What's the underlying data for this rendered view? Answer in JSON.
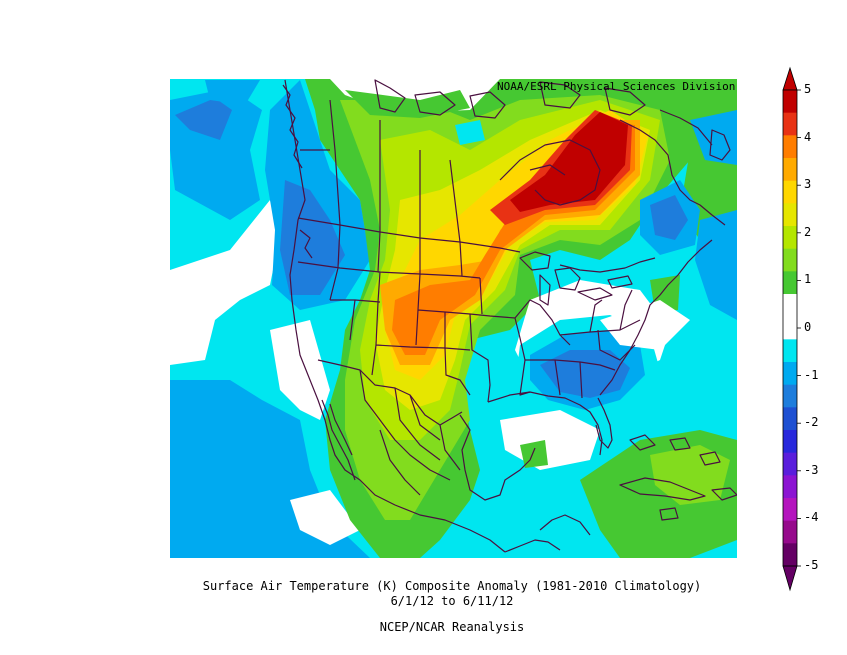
{
  "credit": "NOAA/ESRL Physical Sciences Division",
  "title": "Surface Air Temperature (K) Composite Anomaly (1981-2010 Climatology)",
  "date_range": "6/1/12  to 6/11/12",
  "dataset": "NCEP/NCAR Reanalysis",
  "colorbar": {
    "tick_labels": [
      "5",
      "4",
      "3",
      "2",
      "1",
      "0",
      "-1",
      "-2",
      "-3",
      "-4",
      "-5"
    ],
    "colors": [
      "#c00000",
      "#e83214",
      "#ff7d00",
      "#ffaa00",
      "#ffd700",
      "#e6e600",
      "#b4e600",
      "#82dc1e",
      "#46c832",
      "#ffffff",
      "#ffffff",
      "#00e6f0",
      "#00aaf0",
      "#1e7ddc",
      "#1e50d2",
      "#2828dc",
      "#5a1edc",
      "#8c14d2",
      "#b414be",
      "#960a8c",
      "#640064"
    ]
  },
  "map": {
    "fill_colors": {
      "cyan": "#00e6f0",
      "light_blue": "#00aaf0",
      "blue": "#1e7ddc",
      "green": "#46c832",
      "yellow_green": "#82dc1e",
      "lime": "#b4e600",
      "yellow": "#e6e600",
      "gold": "#ffd700",
      "orange": "#ffaa00",
      "dark_orange": "#ff7d00",
      "red_orange": "#e83214",
      "red": "#c00000",
      "white": "#ffffff"
    },
    "outline_color": "#4a1040"
  }
}
